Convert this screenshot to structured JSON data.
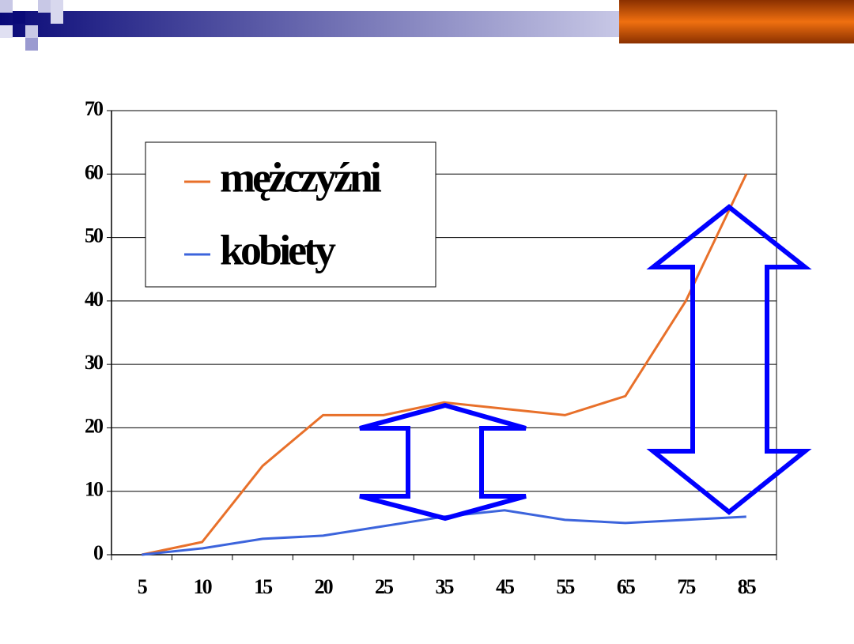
{
  "chart_data": {
    "type": "line",
    "categories": [
      "5",
      "10",
      "15",
      "20",
      "25",
      "35",
      "45",
      "55",
      "65",
      "75",
      "85"
    ],
    "series": [
      {
        "name": "mężczyźni",
        "color": "#e8702a",
        "values": [
          0,
          2,
          14,
          22,
          22,
          24,
          23,
          22,
          25,
          40,
          60
        ]
      },
      {
        "name": "kobiety",
        "color": "#3c64dc",
        "values": [
          0,
          1,
          2.5,
          3,
          4.5,
          6,
          7,
          5.5,
          5,
          5.5,
          6
        ]
      }
    ],
    "ylim": [
      0,
      70
    ],
    "yticks": [
      0,
      10,
      20,
      30,
      40,
      50,
      60,
      70
    ],
    "grid": true
  }
}
